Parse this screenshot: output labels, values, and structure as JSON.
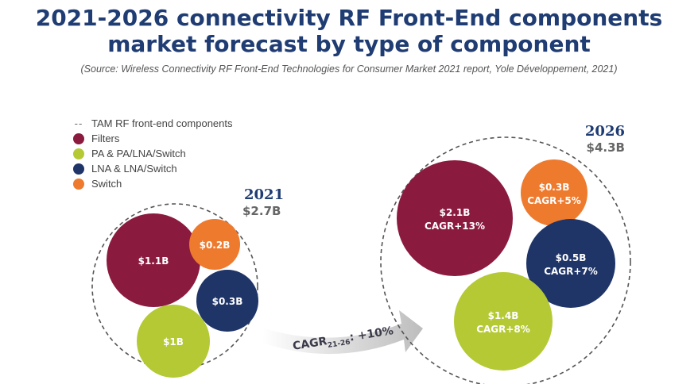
{
  "title_line1": "2021-2026 connectivity RF Front-End components",
  "title_line2": "market forecast by type of component",
  "source": "(Source: Wireless Connectivity RF Front-End Technologies for Consumer Market 2021 report, Yole Développement, 2021)",
  "legend": [
    {
      "marker": "dash",
      "label": "TAM RF front-end components"
    },
    {
      "marker": "dot",
      "color": "#8b1a3f",
      "label": "Filters"
    },
    {
      "marker": "dot",
      "color": "#b5c935",
      "label": "PA & PA/LNA/Switch"
    },
    {
      "marker": "dot",
      "color": "#1f3467",
      "label": "LNA & LNA/Switch"
    },
    {
      "marker": "dot",
      "color": "#ee7a2e",
      "label": "Switch"
    }
  ],
  "cagr_arrow": {
    "prefix": "CAGR",
    "subscript": "21-26",
    "suffix": ": +10%"
  },
  "chart_data": {
    "type": "bubble",
    "title": "2021-2026 connectivity RF Front-End components market forecast by type of component",
    "unit": "$B",
    "series": [
      {
        "name": "Filters",
        "color": "#8b1a3f",
        "values": {
          "2021": 1.1,
          "2026": 2.1
        }
      },
      {
        "name": "PA & PA/LNA/Switch",
        "color": "#b5c935",
        "values": {
          "2021": 1.0,
          "2026": 1.4
        }
      },
      {
        "name": "LNA & LNA/Switch",
        "color": "#1f3467",
        "values": {
          "2021": 0.3,
          "2026": 0.5
        }
      },
      {
        "name": "Switch",
        "color": "#ee7a2e",
        "values": {
          "2021": 0.2,
          "2026": 0.3
        }
      }
    ],
    "totals": {
      "2021": 2.7,
      "2026": 4.3
    },
    "overall_cagr_pct": 10,
    "groups": [
      {
        "year": "2021",
        "total_label": "$2.7B",
        "bubbles": [
          {
            "segment": "Filters",
            "color": "#8b1a3f",
            "value": 1.1,
            "label": "$1.1B"
          },
          {
            "segment": "Switch",
            "color": "#ee7a2e",
            "value": 0.2,
            "label": "$0.2B"
          },
          {
            "segment": "LNA & LNA/Switch",
            "color": "#1f3467",
            "value": 0.3,
            "label": "$0.3B"
          },
          {
            "segment": "PA & PA/LNA/Switch",
            "color": "#b5c935",
            "value": 1.0,
            "label": "$1B"
          }
        ]
      },
      {
        "year": "2026",
        "total_label": "$4.3B",
        "bubbles": [
          {
            "segment": "Filters",
            "color": "#8b1a3f",
            "value": 2.1,
            "label": "$2.1B",
            "cagr": "CAGR+13%"
          },
          {
            "segment": "Switch",
            "color": "#ee7a2e",
            "value": 0.3,
            "label": "$0.3B",
            "cagr": "CAGR+5%"
          },
          {
            "segment": "LNA & LNA/Switch",
            "color": "#1f3467",
            "value": 0.5,
            "label": "$0.5B",
            "cagr": "CAGR+7%"
          },
          {
            "segment": "PA & PA/LNA/Switch",
            "color": "#b5c935",
            "value": 1.4,
            "label": "$1.4B",
            "cagr": "CAGR+8%"
          }
        ]
      }
    ]
  }
}
